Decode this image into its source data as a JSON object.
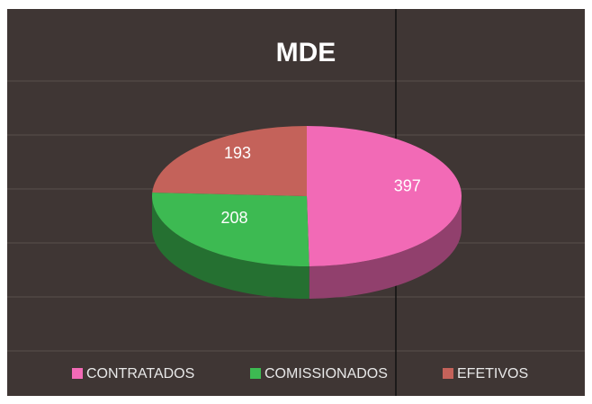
{
  "chart_data": {
    "type": "pie",
    "title": "MDE",
    "categories": [
      "CONTRATADOS",
      "COMISSIONADOS",
      "EFETIVOS"
    ],
    "values": [
      397,
      208,
      193
    ],
    "colors": [
      "#f26ab6",
      "#3dba52",
      "#c4625a"
    ],
    "legend": "bottom"
  }
}
